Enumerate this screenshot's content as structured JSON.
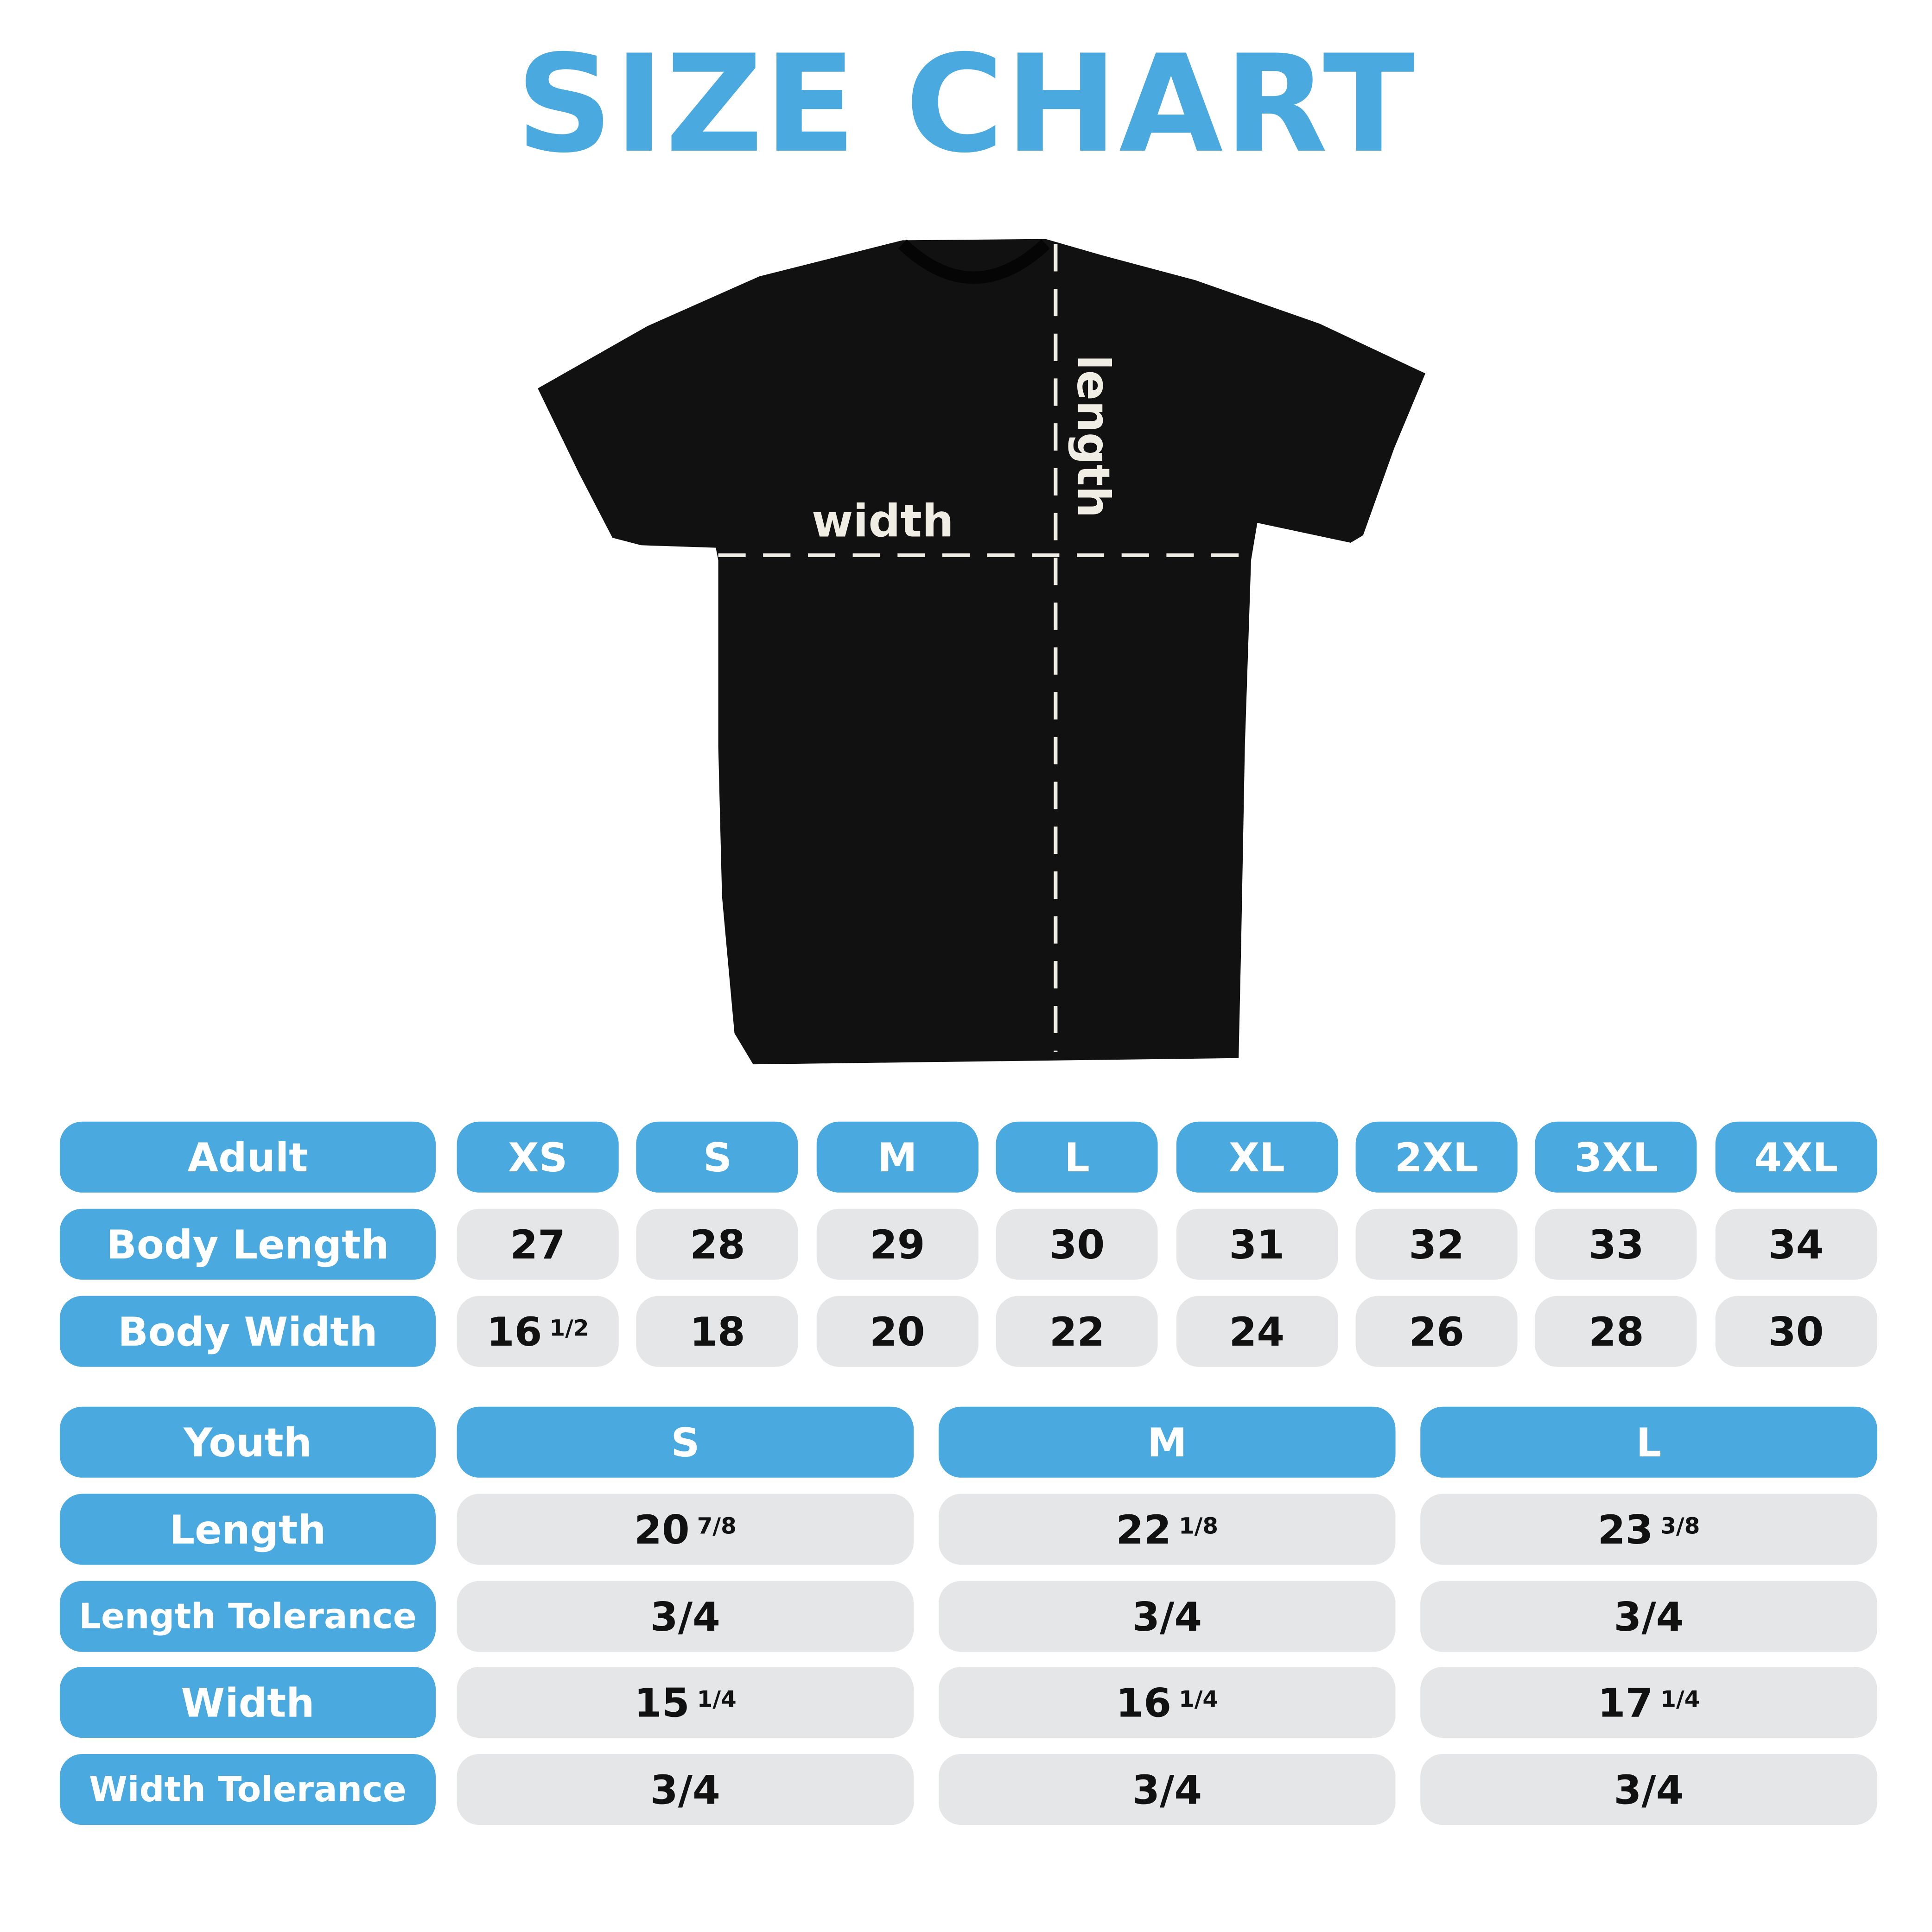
{
  "title": "SIZE CHART",
  "shirt": {
    "width_label": "width",
    "length_label": "length"
  },
  "colors": {
    "accent": "#4aaadf",
    "cell": "#e5e6e8",
    "shirt": "#111111"
  },
  "adult": {
    "header": "Adult",
    "sizes": [
      "XS",
      "S",
      "M",
      "L",
      "XL",
      "2XL",
      "3XL",
      "4XL"
    ],
    "rows": [
      {
        "label": "Body Length",
        "values": [
          {
            "whole": "27"
          },
          {
            "whole": "28"
          },
          {
            "whole": "29"
          },
          {
            "whole": "30"
          },
          {
            "whole": "31"
          },
          {
            "whole": "32"
          },
          {
            "whole": "33"
          },
          {
            "whole": "34"
          }
        ]
      },
      {
        "label": "Body Width",
        "values": [
          {
            "whole": "16",
            "frac": "1/2"
          },
          {
            "whole": "18"
          },
          {
            "whole": "20"
          },
          {
            "whole": "22"
          },
          {
            "whole": "24"
          },
          {
            "whole": "26"
          },
          {
            "whole": "28"
          },
          {
            "whole": "30"
          }
        ]
      }
    ]
  },
  "youth": {
    "header": "Youth",
    "sizes": [
      "S",
      "M",
      "L"
    ],
    "rows": [
      {
        "label": "Length",
        "values": [
          {
            "whole": "20",
            "frac": "7/8"
          },
          {
            "whole": "22",
            "frac": "1/8"
          },
          {
            "whole": "23",
            "frac": "3/8"
          }
        ]
      },
      {
        "label": "Length Tolerance",
        "values": [
          {
            "whole": "3/4"
          },
          {
            "whole": "3/4"
          },
          {
            "whole": "3/4"
          }
        ]
      },
      {
        "label": "Width",
        "values": [
          {
            "whole": "15",
            "frac": "1/4"
          },
          {
            "whole": "16",
            "frac": "1/4"
          },
          {
            "whole": "17",
            "frac": "1/4"
          }
        ]
      },
      {
        "label": "Width Tolerance",
        "values": [
          {
            "whole": "3/4"
          },
          {
            "whole": "3/4"
          },
          {
            "whole": "3/4"
          }
        ]
      }
    ]
  }
}
